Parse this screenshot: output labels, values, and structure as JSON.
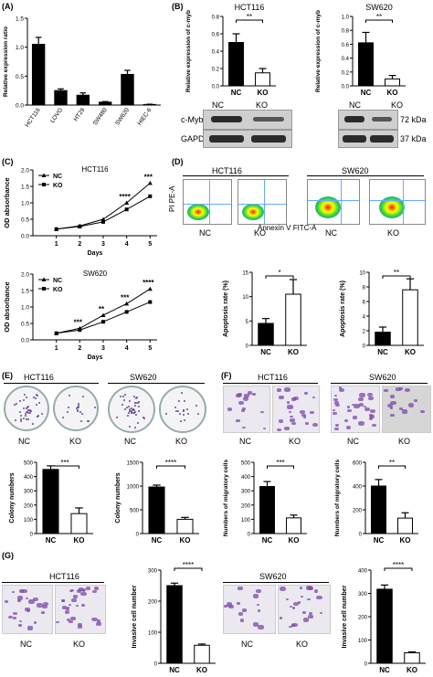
{
  "panel_labels": {
    "A": "(A)",
    "B": "(B)",
    "C": "(C)",
    "D": "(D)",
    "E": "(E)",
    "F": "(F)",
    "G": "(G)"
  },
  "cell_lines": {
    "hct116": "HCT116",
    "sw620": "SW620"
  },
  "groups": {
    "nc": "NC",
    "ko": "KO"
  },
  "blot": {
    "cmyb": "c-Myb",
    "gapdh": "GAPDH",
    "kda72": "72 kDa",
    "kda37": "37 kDa"
  },
  "flow": {
    "y_axis": "PI PE-A",
    "x_axis": "Annexin V FITC-A"
  },
  "colors": {
    "black_bar": "#000000",
    "white_bar": "#ffffff",
    "curve": "#000000"
  },
  "chart_data": [
    {
      "id": "A",
      "type": "bar",
      "categories": [
        "HCT116",
        "LOVO",
        "HT29",
        "SW480",
        "SW620",
        "HIEC-6"
      ],
      "values": [
        1.05,
        0.25,
        0.17,
        0.05,
        0.53,
        0.01
      ],
      "errors": [
        0.12,
        0.03,
        0.04,
        0.01,
        0.07,
        0.005
      ],
      "ylabel": "Relative expression ratio",
      "ylim": [
        0,
        1.5
      ],
      "yticks": [
        "0.0",
        "0.5",
        "1.0",
        "1.5"
      ]
    },
    {
      "id": "B1",
      "type": "bar",
      "title": "HCT116",
      "categories": [
        "NC",
        "KO"
      ],
      "values": [
        0.5,
        0.15
      ],
      "errors": [
        0.1,
        0.05
      ],
      "ylabel": "Relative expression of c-myb",
      "ylim": [
        0,
        0.8
      ],
      "yticks": [
        "0.0",
        "0.2",
        "0.4",
        "0.6",
        "0.8"
      ],
      "sig": "**"
    },
    {
      "id": "B2",
      "type": "bar",
      "title": "SW620",
      "categories": [
        "NC",
        "KO"
      ],
      "values": [
        0.62,
        0.1
      ],
      "errors": [
        0.15,
        0.05
      ],
      "ylabel": "Relative expression of c-myb",
      "ylim": [
        0,
        1.0
      ],
      "yticks": [
        "0.0",
        "0.2",
        "0.4",
        "0.6",
        "0.8",
        "1.0"
      ],
      "sig": "**"
    },
    {
      "id": "C1",
      "type": "line",
      "title": "HCT116",
      "x": [
        1,
        2,
        3,
        4,
        5
      ],
      "series": [
        {
          "name": "NC",
          "values": [
            0.2,
            0.3,
            0.5,
            1.0,
            1.6
          ]
        },
        {
          "name": "KO",
          "values": [
            0.2,
            0.28,
            0.42,
            0.8,
            1.2
          ]
        }
      ],
      "xlabel": "Days",
      "ylabel": "OD absorbance",
      "ylim": [
        0,
        2.0
      ],
      "yticks": [
        "0.0",
        "0.5",
        "1.0",
        "1.5",
        "2.0"
      ],
      "annotations": [
        {
          "x": 4,
          "text": "****"
        },
        {
          "x": 5,
          "text": "***"
        }
      ]
    },
    {
      "id": "C2",
      "type": "line",
      "title": "SW620",
      "x": [
        1,
        2,
        3,
        4,
        5
      ],
      "series": [
        {
          "name": "NC",
          "values": [
            0.2,
            0.35,
            0.75,
            1.1,
            1.55
          ]
        },
        {
          "name": "KO",
          "values": [
            0.2,
            0.3,
            0.55,
            0.85,
            1.15
          ]
        }
      ],
      "xlabel": "Days",
      "ylabel": "OD absorbance",
      "ylim": [
        0,
        2.0
      ],
      "yticks": [
        "0.0",
        "0.5",
        "1.0",
        "1.5",
        "2.0"
      ],
      "annotations": [
        {
          "x": 2,
          "text": "***"
        },
        {
          "x": 3,
          "text": "**"
        },
        {
          "x": 4,
          "text": "***"
        },
        {
          "x": 5,
          "text": "****"
        }
      ]
    },
    {
      "id": "D1",
      "type": "bar",
      "categories": [
        "NC",
        "KO"
      ],
      "values": [
        4.5,
        10.5
      ],
      "errors": [
        1.0,
        3.0
      ],
      "ylabel": "Apoptosis rate (%)",
      "ylim": [
        0,
        15
      ],
      "yticks": [
        "0",
        "5",
        "10",
        "15"
      ],
      "sig": "*"
    },
    {
      "id": "D2",
      "type": "bar",
      "categories": [
        "NC",
        "KO"
      ],
      "values": [
        1.8,
        7.6
      ],
      "errors": [
        0.7,
        1.5
      ],
      "ylabel": "Apoptosis rate (%)",
      "ylim": [
        0,
        10
      ],
      "yticks": [
        "0",
        "2",
        "4",
        "6",
        "8",
        "10"
      ],
      "sig": "**"
    },
    {
      "id": "E1",
      "type": "bar",
      "categories": [
        "NC",
        "KO"
      ],
      "values": [
        450,
        140
      ],
      "errors": [
        25,
        40
      ],
      "ylabel": "Colony numbers",
      "ylim": [
        0,
        500
      ],
      "yticks": [
        "0",
        "100",
        "200",
        "300",
        "400",
        "500"
      ],
      "sig": "***"
    },
    {
      "id": "E2",
      "type": "bar",
      "categories": [
        "NC",
        "KO"
      ],
      "values": [
        980,
        300
      ],
      "errors": [
        40,
        40
      ],
      "ylabel": "Colony numbers",
      "ylim": [
        0,
        1500
      ],
      "yticks": [
        "0",
        "500",
        "1000",
        "1500"
      ],
      "sig": "****"
    },
    {
      "id": "F1",
      "type": "bar",
      "categories": [
        "NC",
        "KO"
      ],
      "values": [
        330,
        110
      ],
      "errors": [
        35,
        20
      ],
      "ylabel": "Numbers of migratory cells",
      "ylim": [
        0,
        500
      ],
      "yticks": [
        "0",
        "100",
        "200",
        "300",
        "400",
        "500"
      ],
      "sig": "***"
    },
    {
      "id": "F2",
      "type": "bar",
      "categories": [
        "NC",
        "KO"
      ],
      "values": [
        400,
        130
      ],
      "errors": [
        55,
        45
      ],
      "ylabel": "Numbers of migratory cells",
      "ylim": [
        0,
        600
      ],
      "yticks": [
        "0",
        "200",
        "400",
        "600"
      ],
      "sig": "**"
    },
    {
      "id": "G1",
      "type": "bar",
      "categories": [
        "NC",
        "KO"
      ],
      "values": [
        250,
        58
      ],
      "errors": [
        8,
        4
      ],
      "ylabel": "Invasive cell number",
      "ylim": [
        0,
        300
      ],
      "yticks": [
        "0",
        "100",
        "200",
        "300"
      ],
      "sig": "****"
    },
    {
      "id": "G2",
      "type": "bar",
      "categories": [
        "NC",
        "KO"
      ],
      "values": [
        318,
        45
      ],
      "errors": [
        18,
        4
      ],
      "ylabel": "Invasive cell number",
      "ylim": [
        0,
        400
      ],
      "yticks": [
        "0",
        "100",
        "200",
        "300",
        "400"
      ],
      "sig": "****"
    }
  ]
}
